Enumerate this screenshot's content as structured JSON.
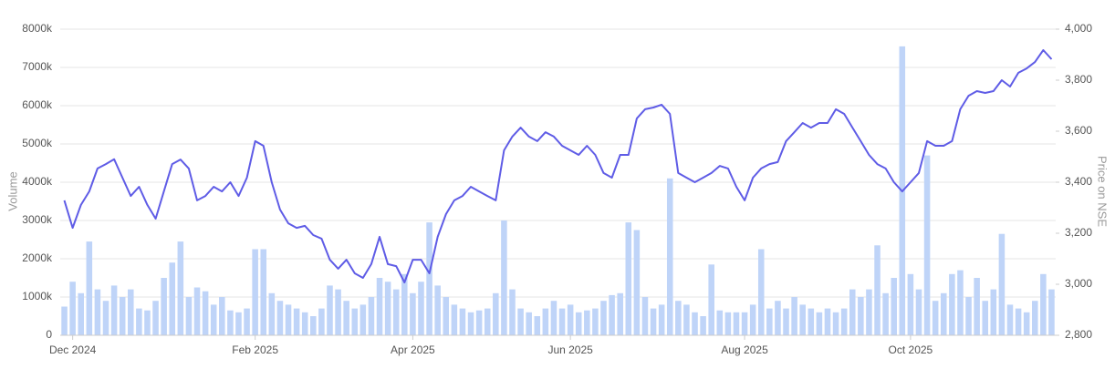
{
  "chart_data": {
    "type": "bar-line",
    "y_label": "Volume",
    "y2_label": "Price on NSE",
    "categories": [
      null,
      "Dec 2024",
      null,
      null,
      null,
      null,
      null,
      null,
      null,
      null,
      null,
      null,
      null,
      null,
      null,
      null,
      null,
      null,
      null,
      null,
      null,
      null,
      null,
      "Feb 2025",
      null,
      null,
      null,
      null,
      null,
      null,
      null,
      null,
      null,
      null,
      null,
      null,
      null,
      null,
      null,
      null,
      null,
      null,
      "Apr 2025",
      null,
      null,
      null,
      null,
      null,
      null,
      null,
      null,
      null,
      null,
      null,
      null,
      null,
      null,
      null,
      null,
      null,
      null,
      "Jun 2025",
      null,
      null,
      null,
      null,
      null,
      null,
      null,
      null,
      null,
      null,
      null,
      null,
      null,
      null,
      null,
      null,
      null,
      null,
      null,
      null,
      "Aug 2025",
      null,
      null,
      null,
      null,
      null,
      null,
      null,
      null,
      null,
      null,
      null,
      null,
      null,
      null,
      null,
      null,
      null,
      null,
      null,
      "Oct 2025",
      null,
      null,
      null,
      null,
      null,
      null,
      null,
      null,
      null,
      null,
      null,
      null,
      null,
      null,
      null,
      null,
      null
    ],
    "series": [
      {
        "type": "bar",
        "color": "#bfd4f8",
        "axis": "y",
        "values": [
          750,
          1400,
          1100,
          2450,
          1200,
          900,
          1300,
          1000,
          1200,
          700,
          650,
          900,
          1500,
          1900,
          2450,
          1000,
          1250,
          1150,
          800,
          1000,
          650,
          600,
          700,
          2250,
          2250,
          1100,
          900,
          800,
          700,
          600,
          500,
          700,
          1300,
          1200,
          900,
          700,
          800,
          1000,
          1500,
          1400,
          1200,
          1600,
          1100,
          1400,
          2950,
          1300,
          1000,
          800,
          700,
          600,
          650,
          700,
          1100,
          3000,
          1200,
          700,
          600,
          500,
          700,
          900,
          700,
          800,
          600,
          650,
          700,
          900,
          1050,
          1100,
          2950,
          2750,
          1000,
          700,
          800,
          4100,
          900,
          800,
          600,
          500,
          1850,
          650,
          600,
          600,
          600,
          800,
          2250,
          700,
          900,
          700,
          1000,
          800,
          700,
          600,
          700,
          600,
          700,
          1200,
          1000,
          1200,
          2350,
          1100,
          1500,
          7550,
          1600,
          1200,
          4700,
          900,
          1100,
          1600,
          1700,
          1000,
          1500,
          900,
          1200,
          2650,
          800,
          700,
          600,
          900,
          1600,
          1200
        ]
      },
      {
        "type": "line",
        "color": "#5f5ce6",
        "axis": "y2",
        "values": [
          3329,
          3221,
          3311,
          3364,
          3454,
          3471,
          3490,
          3418,
          3346,
          3382,
          3311,
          3257,
          3364,
          3471,
          3489,
          3454,
          3329,
          3346,
          3382,
          3364,
          3400,
          3346,
          3418,
          3561,
          3543,
          3400,
          3293,
          3239,
          3221,
          3229,
          3193,
          3179,
          3096,
          3061,
          3096,
          3043,
          3025,
          3079,
          3186,
          3079,
          3071,
          3007,
          3096,
          3096,
          3043,
          3186,
          3275,
          3329,
          3346,
          3382,
          3364,
          3346,
          3329,
          3525,
          3579,
          3614,
          3579,
          3561,
          3596,
          3579,
          3543,
          3525,
          3507,
          3543,
          3507,
          3436,
          3418,
          3507,
          3507,
          3650,
          3686,
          3693,
          3704,
          3668,
          3436,
          3418,
          3400,
          3418,
          3436,
          3464,
          3454,
          3382,
          3329,
          3418,
          3454,
          3471,
          3479,
          3561,
          3596,
          3632,
          3614,
          3632,
          3632,
          3686,
          3668,
          3614,
          3561,
          3507,
          3471,
          3454,
          3400,
          3364,
          3400,
          3436,
          3561,
          3543,
          3543,
          3561,
          3686,
          3739,
          3757,
          3750,
          3757,
          3800,
          3775,
          3829,
          3846,
          3871,
          3918,
          3882
        ]
      }
    ],
    "ylim": [
      0,
      8000
    ],
    "yticks": [
      0,
      {
        "value": 1000,
        "label": "1000k"
      },
      {
        "value": 2000,
        "label": "2000k"
      },
      {
        "value": 3000,
        "label": "3000k"
      },
      {
        "value": 4000,
        "label": "4000k"
      },
      {
        "value": 5000,
        "label": "5000k"
      },
      {
        "value": 6000,
        "label": "6000k"
      },
      {
        "value": 7000,
        "label": "7000k"
      },
      {
        "value": 8000,
        "label": "8000k"
      }
    ],
    "y2lim": [
      2800,
      4000
    ],
    "y2ticks": [
      {
        "value": 2800,
        "label": "2,800"
      },
      {
        "value": 3000,
        "label": "3,000"
      },
      {
        "value": 3200,
        "label": "3,200"
      },
      {
        "value": 3400,
        "label": "3,400"
      },
      {
        "value": 3600,
        "label": "3,600"
      },
      {
        "value": 3800,
        "label": "3,800"
      },
      {
        "value": 4000,
        "label": "4,000"
      }
    ],
    "grid": true
  }
}
